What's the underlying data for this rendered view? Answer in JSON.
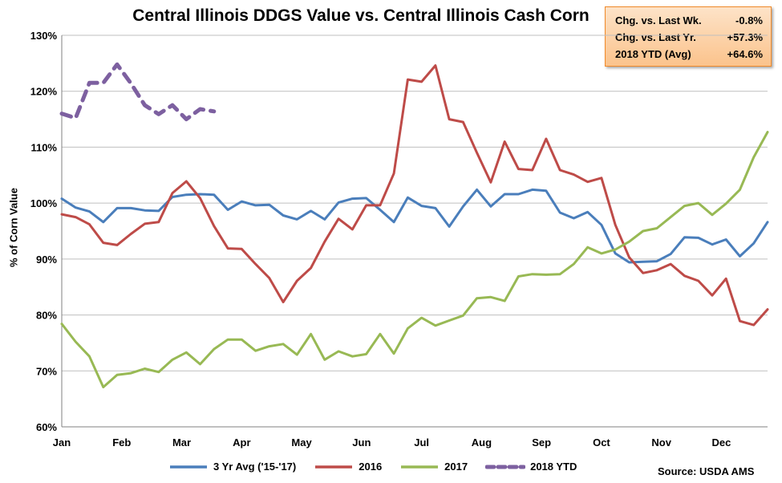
{
  "chart_data": {
    "type": "line",
    "title": "Central Illinois DDGS Value vs. Central Illinois Cash Corn",
    "ylabel": "% of Corn Value",
    "ylim": [
      60,
      130
    ],
    "y_ticks": [
      "60%",
      "70%",
      "80%",
      "90%",
      "100%",
      "110%",
      "120%",
      "130%"
    ],
    "x_ticks": [
      "Jan",
      "Feb",
      "Mar",
      "Apr",
      "May",
      "Jun",
      "Jul",
      "Aug",
      "Sep",
      "Oct",
      "Nov",
      "Dec"
    ],
    "weeks_per_year": 52,
    "grid": "horizontal",
    "legend_position": "bottom",
    "series": [
      {
        "name": "3 Yr Avg ('15-'17)",
        "color": "#4a7ebb",
        "dash": false,
        "values": [
          100.8,
          99.2,
          98.5,
          96.6,
          99.1,
          99.1,
          98.7,
          98.6,
          101.1,
          101.5,
          101.6,
          101.5,
          98.8,
          100.3,
          99.6,
          99.7,
          97.8,
          97.1,
          98.6,
          97.1,
          100.1,
          100.8,
          100.9,
          98.8,
          96.6,
          101.0,
          99.5,
          99.1,
          95.8,
          99.4,
          102.4,
          99.4,
          101.6,
          101.6,
          102.4,
          102.2,
          98.3,
          97.3,
          98.4,
          96.1,
          91.0,
          89.4,
          89.5,
          89.6,
          90.9,
          93.9,
          93.8,
          92.6,
          93.5,
          90.5,
          92.8,
          96.6
        ]
      },
      {
        "name": "2016",
        "color": "#be4b48",
        "dash": false,
        "values": [
          98.0,
          97.5,
          96.2,
          92.9,
          92.5,
          94.5,
          96.3,
          96.6,
          101.8,
          103.9,
          100.9,
          95.9,
          91.9,
          91.8,
          89.1,
          86.6,
          82.3,
          86.1,
          88.4,
          93.1,
          97.2,
          95.3,
          99.6,
          99.6,
          105.3,
          122.1,
          121.7,
          124.6,
          115.0,
          114.5,
          109.0,
          103.7,
          111.0,
          106.1,
          105.9,
          111.5,
          105.9,
          105.1,
          103.8,
          104.5,
          96.1,
          90.3,
          87.5,
          88.0,
          89.1,
          87.0,
          86.1,
          83.5,
          86.5,
          78.9,
          78.2,
          81.0
        ]
      },
      {
        "name": "2017",
        "color": "#98b954",
        "dash": false,
        "values": [
          78.4,
          75.2,
          72.6,
          67.1,
          69.3,
          69.6,
          70.4,
          69.8,
          72.0,
          73.3,
          71.2,
          73.9,
          75.6,
          75.6,
          73.6,
          74.4,
          74.8,
          72.9,
          76.6,
          72.0,
          73.5,
          72.6,
          73.0,
          76.6,
          73.1,
          77.6,
          79.5,
          78.1,
          79.0,
          79.9,
          83.0,
          83.2,
          82.5,
          86.9,
          87.3,
          87.2,
          87.3,
          89.1,
          92.1,
          91.0,
          91.7,
          93.1,
          95.0,
          95.5,
          97.5,
          99.5,
          100.0,
          97.9,
          99.9,
          102.4,
          108.2,
          112.7
        ]
      },
      {
        "name": "2018 YTD",
        "color": "#7d60a0",
        "dash": true,
        "values": [
          116.0,
          115.2,
          121.5,
          121.5,
          124.8,
          121.4,
          117.5,
          115.9,
          117.5,
          115.0,
          116.8,
          116.4
        ]
      }
    ]
  },
  "stats": [
    {
      "label": "Chg. vs. Last Wk.",
      "value": "-0.8%"
    },
    {
      "label": "Chg. vs. Last Yr.",
      "value": "+57.3%"
    },
    {
      "label": "2018 YTD (Avg)",
      "value": "+64.6%"
    }
  ],
  "source": "Source: USDA AMS"
}
